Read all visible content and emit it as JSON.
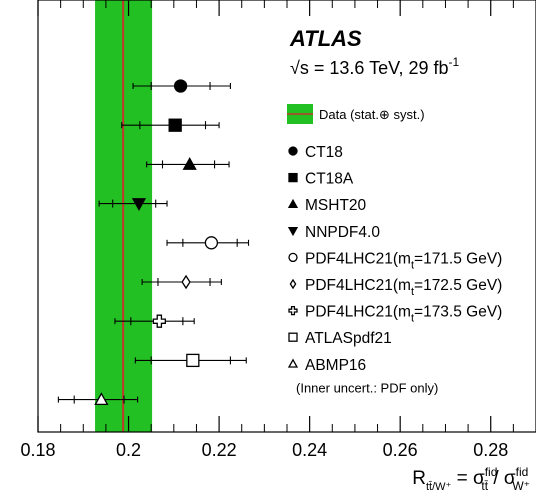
{
  "chart_data": {
    "type": "scatter",
    "experiment": "ATLAS",
    "energy_label": "√s = 13.6 TeV, 29 fb⁻¹",
    "xlabel": "R_{tt̄/W⁺} = σ^{fid}_{tt̄} / σ^{fid}_{W⁺}",
    "xlim": [
      0.18,
      0.29
    ],
    "xticks": [
      "0.18",
      "0.2",
      "0.22",
      "0.24",
      "0.26",
      "0.28"
    ],
    "xtick_values": [
      0.18,
      0.2,
      0.22,
      0.24,
      0.26,
      0.28
    ],
    "data_band": {
      "label": "Data (stat.⊕ syst.)",
      "central": 0.1988,
      "low": 0.1926,
      "high": 0.2052,
      "band_color": "#22c022",
      "line_color": "#c0392b"
    },
    "predictions": [
      {
        "name": "CT18",
        "marker": "filled-circle",
        "value": 0.2115,
        "inner": [
          0.205,
          0.218
        ],
        "outer": [
          0.201,
          0.2225
        ]
      },
      {
        "name": "CT18A",
        "marker": "filled-square",
        "value": 0.2103,
        "inner": [
          0.2025,
          0.217
        ],
        "outer": [
          0.1985,
          0.22
        ]
      },
      {
        "name": "MSHT20",
        "marker": "filled-triangle-up",
        "value": 0.2135,
        "inner": [
          0.2075,
          0.219
        ],
        "outer": [
          0.204,
          0.2222
        ]
      },
      {
        "name": "NNPDF4.0",
        "marker": "filled-triangle-down",
        "value": 0.2023,
        "inner": [
          0.1965,
          0.206
        ],
        "outer": [
          0.1935,
          0.2085
        ]
      },
      {
        "name": "PDF4LHC21(mt=171.5 GeV)",
        "marker": "open-circle",
        "value": 0.2183,
        "inner": [
          0.212,
          0.224
        ],
        "outer": [
          0.2085,
          0.2265
        ]
      },
      {
        "name": "PDF4LHC21(mt=172.5 GeV)",
        "marker": "open-diamond",
        "value": 0.2127,
        "inner": [
          0.2065,
          0.218
        ],
        "outer": [
          0.203,
          0.2205
        ]
      },
      {
        "name": "PDF4LHC21(mt=173.5 GeV)",
        "marker": "open-cross",
        "value": 0.2068,
        "inner": [
          0.2005,
          0.212
        ],
        "outer": [
          0.197,
          0.2145
        ]
      },
      {
        "name": "ATLASpdf21",
        "marker": "open-square",
        "value": 0.2142,
        "inner": [
          0.205,
          0.2225
        ],
        "outer": [
          0.2015,
          0.226
        ]
      },
      {
        "name": "ABMP16",
        "marker": "open-triangle-up",
        "value": 0.194,
        "inner": [
          0.188,
          0.199
        ],
        "outer": [
          0.1845,
          0.202
        ]
      }
    ],
    "legend_note": "(Inner uncert.: PDF only)",
    "legend_placement": "right",
    "grid": false
  }
}
